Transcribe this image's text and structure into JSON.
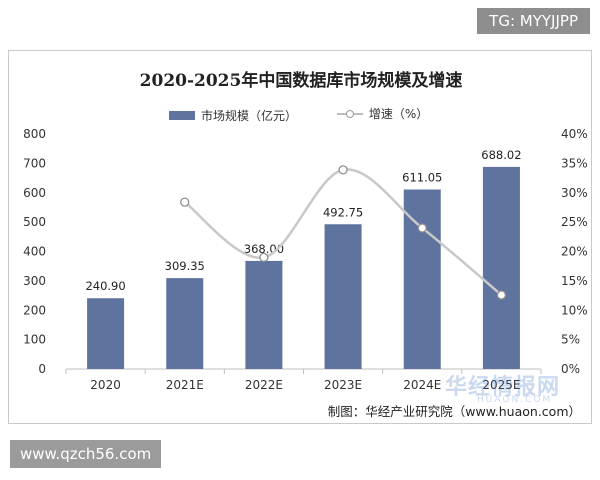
{
  "badges": {
    "top_right": "TG: MYYJJPP",
    "bottom_left": "www.qzch56.com"
  },
  "watermark": {
    "main": "华经情报网",
    "sub": "HUAON.COM"
  },
  "source": "制图：华经产业研究院（www.huaon.com）",
  "colors": {
    "bar": "#5f739f",
    "line": "#c8c8c8",
    "marker_stroke": "#8f8f8f"
  },
  "chart_data": {
    "type": "bar",
    "title": "2020-2025年中国数据库市场规模及增速",
    "categories": [
      "2020",
      "2021E",
      "2022E",
      "2023E",
      "2024E",
      "2025E"
    ],
    "series": [
      {
        "name": "市场规模（亿元）",
        "type": "bar",
        "axis": "left",
        "values": [
          240.9,
          309.35,
          368.0,
          492.75,
          611.05,
          688.02
        ],
        "data_labels": [
          "240.90",
          "309.35",
          "368.00",
          "492.75",
          "611.05",
          "688.02"
        ]
      },
      {
        "name": "增速（%）",
        "type": "line",
        "smooth": true,
        "axis": "right",
        "values": [
          null,
          28.4,
          19.0,
          33.9,
          24.0,
          12.6
        ]
      }
    ],
    "y_left": {
      "min": 0,
      "max": 800,
      "step": 100,
      "ticks": [
        "0",
        "100",
        "200",
        "300",
        "400",
        "500",
        "600",
        "700",
        "800"
      ]
    },
    "y_right": {
      "min": 0,
      "max": 40,
      "step": 5,
      "ticks": [
        "0%",
        "5%",
        "10%",
        "15%",
        "20%",
        "25%",
        "30%",
        "35%",
        "40%"
      ]
    },
    "grid": false,
    "legend": "top-center"
  }
}
